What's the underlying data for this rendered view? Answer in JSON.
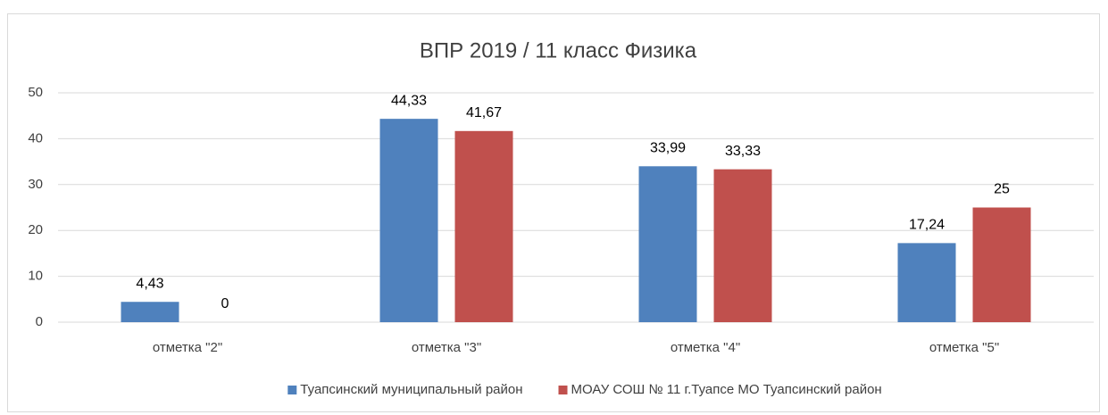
{
  "chart_data": {
    "type": "bar",
    "title": "ВПР 2019 / 11 класс Физика",
    "categories": [
      "отметка \"2\"",
      "отметка \"3\"",
      "отметка \"4\"",
      "отметка \"5\""
    ],
    "series": [
      {
        "name": "Туапсинский муниципальный район",
        "color": "#4f81bd",
        "values": [
          4.43,
          44.33,
          33.99,
          17.24
        ],
        "value_labels": [
          "4,43",
          "44,33",
          "33,99",
          "17,24"
        ]
      },
      {
        "name": "МОАУ СОШ № 11 г.Туапсе МО Туапсинский район",
        "color": "#c0504d",
        "values": [
          0,
          41.67,
          33.33,
          25
        ],
        "value_labels": [
          "0",
          "41,67",
          "33,33",
          "25"
        ]
      }
    ],
    "ylim": [
      0,
      50
    ],
    "yticks": [
      0,
      10,
      20,
      30,
      40,
      50
    ],
    "grid": true,
    "legend": "bottom"
  }
}
